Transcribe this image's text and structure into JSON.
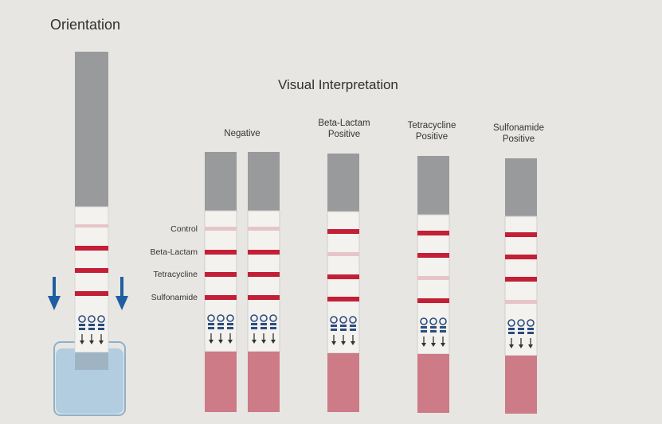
{
  "titles": {
    "orientation": "Orientation",
    "interpretation": "Visual Interpretation"
  },
  "line_labels": [
    "Control",
    "Beta-Lactam",
    "Tetracycline",
    "Sulfonamide"
  ],
  "results": [
    {
      "label": [
        "Negative",
        ""
      ],
      "strips": 2,
      "lines": [
        false,
        true,
        true,
        true
      ]
    },
    {
      "label": [
        "Beta-Lactam",
        "Positive"
      ],
      "strips": 1,
      "lines": [
        true,
        false,
        true,
        true
      ]
    },
    {
      "label": [
        "Tetracycline",
        "Positive"
      ],
      "strips": 1,
      "lines": [
        true,
        true,
        false,
        true
      ]
    },
    {
      "label": [
        "Sulfonamide",
        "Positive"
      ],
      "strips": 1,
      "lines": [
        true,
        true,
        true,
        false
      ]
    }
  ],
  "colors": {
    "background": "#e7e6e2",
    "strip_top": "#999a9c",
    "strip_window": "#f3f2ef",
    "test_line": "#c41f36",
    "faint_line": "#e6c5c8",
    "sample_pad": "#cd7b87",
    "arrow_blue": "#1f5ea0",
    "liquid": "#a8c7df"
  }
}
